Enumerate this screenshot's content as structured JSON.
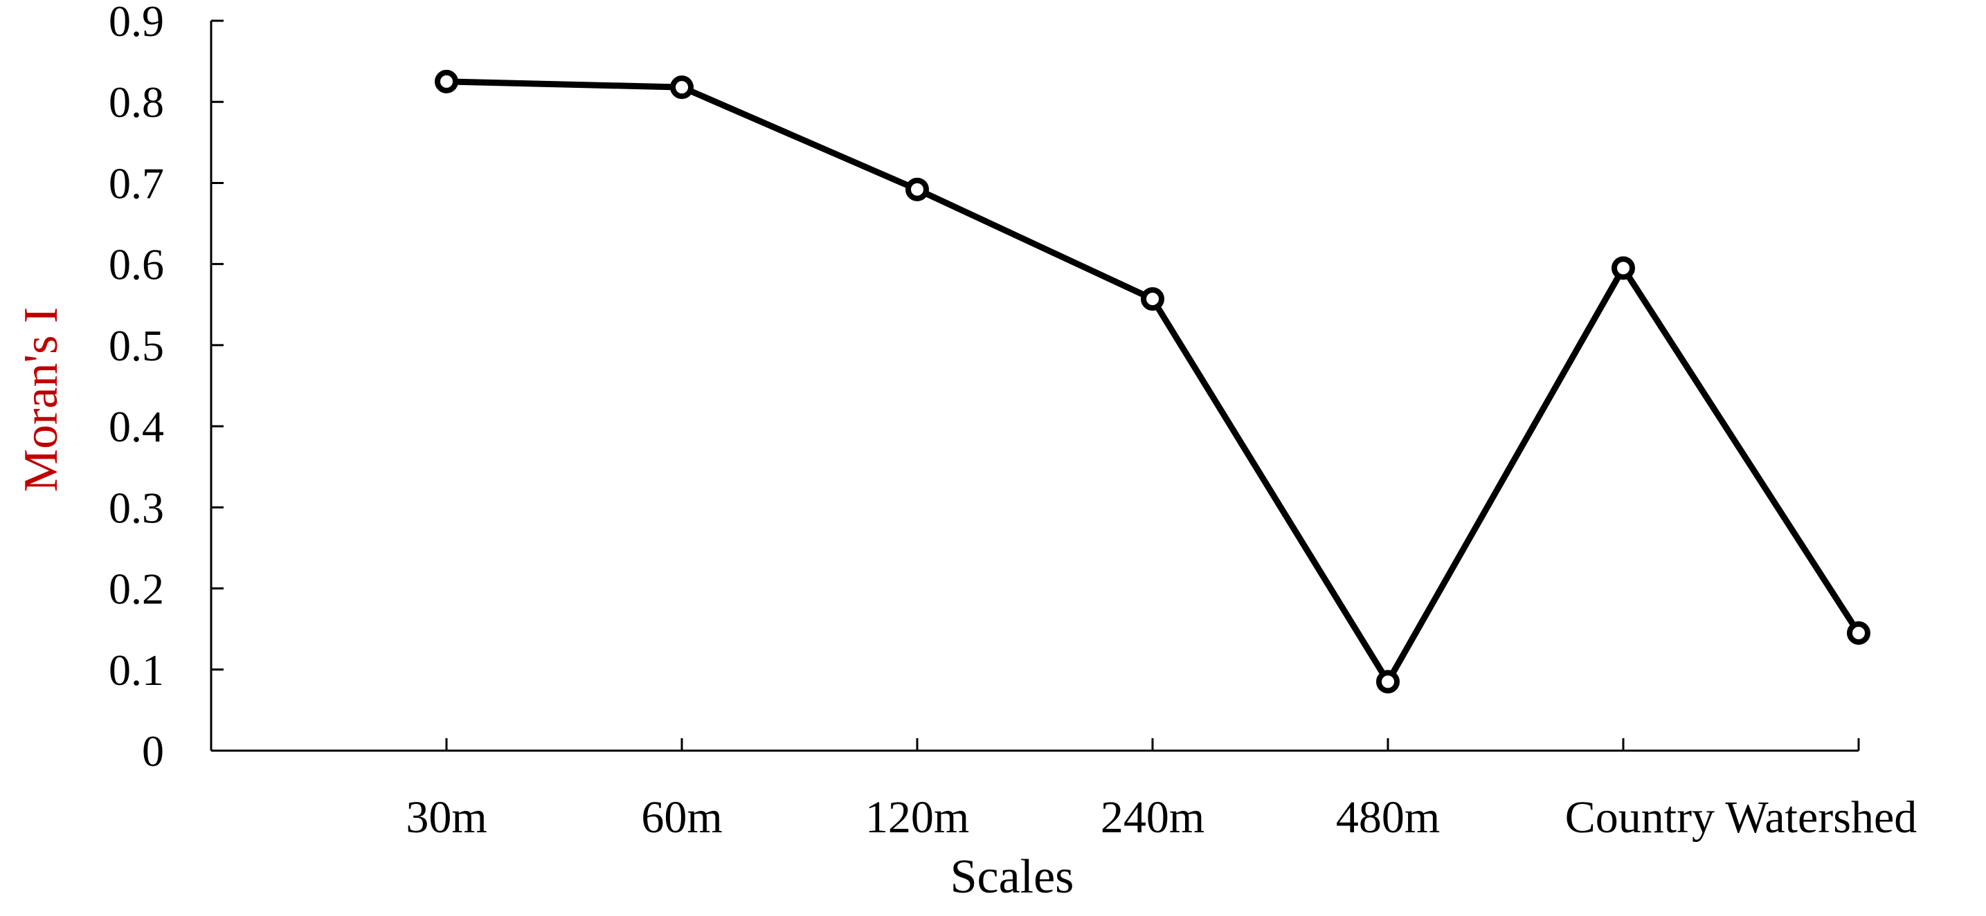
{
  "chart_data": {
    "type": "line",
    "title": "",
    "xlabel": "Scales",
    "ylabel": "Moran's I",
    "ylabel_color": "#c00000",
    "line_color": "#000000",
    "marker": "open-circle",
    "categories": [
      "30m",
      "60m",
      "120m",
      "240m",
      "480m",
      "Country",
      "Watershed"
    ],
    "x_tick_labels": [
      "30m",
      "60m",
      "120m",
      "240m",
      "480m",
      "Country Watershed"
    ],
    "y_ticks": [
      "0",
      "0.1",
      "0.2",
      "0.3",
      "0.4",
      "0.5",
      "0.6",
      "0.7",
      "0.8",
      "0.9"
    ],
    "ylim": [
      0,
      0.9
    ],
    "grid": false,
    "legend": "none",
    "series": [
      {
        "values": [
          0.825,
          0.818,
          0.692,
          0.557,
          0.085,
          0.595,
          0.145
        ]
      }
    ]
  }
}
